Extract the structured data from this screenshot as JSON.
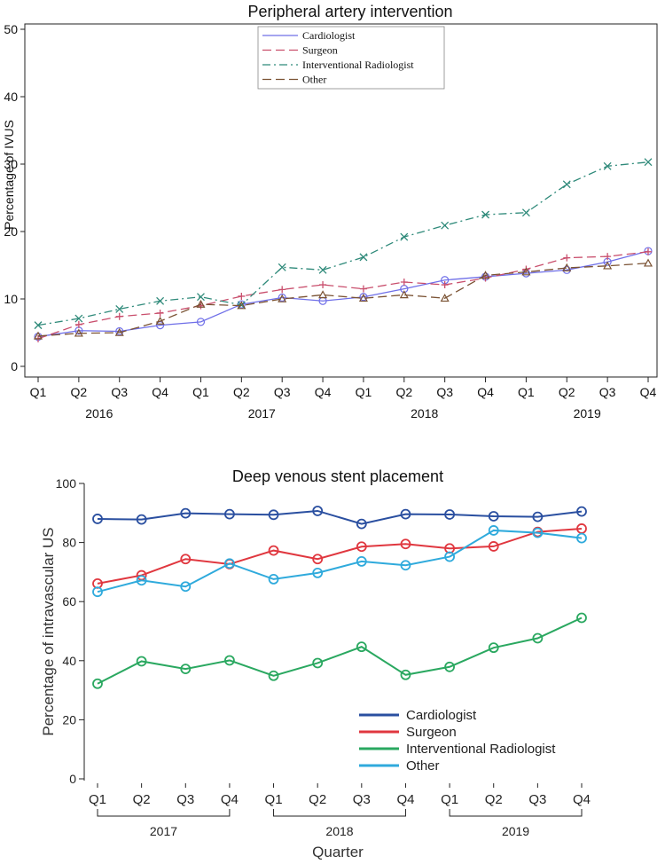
{
  "chart_data": [
    {
      "type": "line",
      "title": "Peripheral artery intervention",
      "xlabel": "",
      "ylabel": "Percentage of IVUS",
      "ylim": [
        0,
        50
      ],
      "yticks": [
        0,
        10,
        20,
        30,
        40,
        50
      ],
      "categories": [
        "Q1",
        "Q2",
        "Q3",
        "Q4",
        "Q1",
        "Q2",
        "Q3",
        "Q4",
        "Q1",
        "Q2",
        "Q3",
        "Q4",
        "Q1",
        "Q2",
        "Q3",
        "Q4"
      ],
      "year_labels": [
        {
          "label": "2016",
          "center_index": 1.5
        },
        {
          "label": "2017",
          "center_index": 5.5
        },
        {
          "label": "2018",
          "center_index": 9.5
        },
        {
          "label": "2019",
          "center_index": 13.5
        }
      ],
      "grid": false,
      "legend_position": "top-center",
      "series": [
        {
          "name": "Cardiologist",
          "color": "#6f6fe8",
          "marker": "circle",
          "dash": "solid",
          "values": [
            4.4,
            5.3,
            5.2,
            6.1,
            6.6,
            9.2,
            10.2,
            9.7,
            10.3,
            11.5,
            12.8,
            13.3,
            13.8,
            14.3,
            15.5,
            17.1
          ]
        },
        {
          "name": "Surgeon",
          "color": "#c94f6d",
          "marker": "plus",
          "dash": "long-dash",
          "values": [
            4.1,
            6.2,
            7.4,
            7.9,
            9.0,
            10.4,
            11.4,
            12.1,
            11.5,
            12.5,
            12.1,
            13.1,
            14.4,
            16.1,
            16.3,
            17.0
          ]
        },
        {
          "name": "Interventional Radiologist",
          "color": "#2f8a7a",
          "marker": "x",
          "dash": "dash-dot",
          "values": [
            6.1,
            7.1,
            8.5,
            9.7,
            10.3,
            9.1,
            14.7,
            14.3,
            16.2,
            19.2,
            20.9,
            22.5,
            22.8,
            27.0,
            29.7,
            30.3
          ]
        },
        {
          "name": "Other",
          "color": "#7a5233",
          "marker": "triangle",
          "dash": "long-dash",
          "values": [
            4.5,
            4.9,
            5.0,
            6.7,
            9.2,
            9.0,
            10.0,
            10.6,
            10.1,
            10.6,
            10.1,
            13.5,
            14.0,
            14.6,
            14.9,
            15.3
          ]
        }
      ]
    },
    {
      "type": "line",
      "title": "Deep venous stent placement",
      "xlabel": "Quarter",
      "ylabel": "Percentage of intravascular US",
      "ylim": [
        0,
        100
      ],
      "yticks": [
        0,
        20,
        40,
        60,
        80,
        100
      ],
      "categories": [
        "Q1",
        "Q2",
        "Q3",
        "Q4",
        "Q1",
        "Q2",
        "Q3",
        "Q4",
        "Q1",
        "Q2",
        "Q3",
        "Q4"
      ],
      "year_labels": [
        {
          "label": "2017",
          "center_index": 1.5
        },
        {
          "label": "2018",
          "center_index": 5.5
        },
        {
          "label": "2019",
          "center_index": 9.5
        }
      ],
      "grid": false,
      "legend_position": "bottom-right",
      "series": [
        {
          "name": "Cardiologist",
          "color": "#2a4fa0",
          "marker": "circle",
          "values": [
            88.0,
            87.8,
            89.9,
            89.6,
            89.4,
            90.7,
            86.3,
            89.6,
            89.5,
            88.9,
            88.7,
            90.5
          ]
        },
        {
          "name": "Surgeon",
          "color": "#e0373f",
          "marker": "circle",
          "values": [
            66.1,
            68.9,
            74.4,
            72.7,
            77.3,
            74.4,
            78.6,
            79.5,
            78.0,
            78.7,
            83.6,
            84.7
          ]
        },
        {
          "name": "Interventional Radiologist",
          "color": "#2aa860",
          "marker": "circle",
          "values": [
            32.2,
            39.8,
            37.2,
            40.1,
            34.9,
            39.2,
            44.7,
            35.2,
            37.9,
            44.4,
            47.6,
            54.5
          ]
        },
        {
          "name": "Other",
          "color": "#2faadc",
          "marker": "circle",
          "values": [
            63.3,
            67.2,
            65.1,
            72.9,
            67.6,
            69.7,
            73.6,
            72.3,
            75.2,
            84.1,
            83.3,
            81.5
          ]
        }
      ]
    }
  ]
}
